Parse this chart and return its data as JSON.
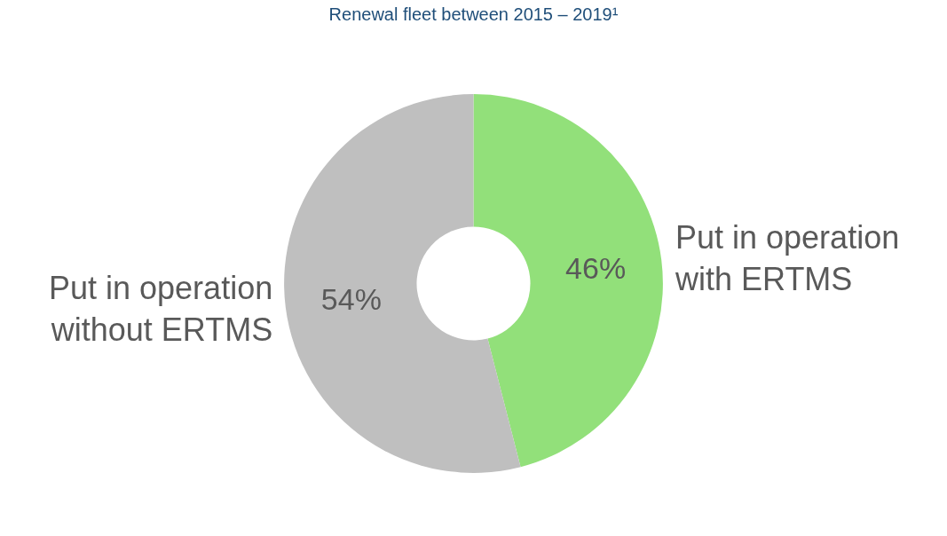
{
  "chart_data": {
    "type": "donut",
    "title": "Renewal fleet between 2015 – 2019¹",
    "categories": [
      "Put in operation with ERTMS",
      "Put in operation without ERTMS"
    ],
    "values": [
      46,
      54
    ],
    "value_labels": [
      "46%",
      "54%"
    ],
    "colors": [
      "#92e07a",
      "#bfbfbf"
    ],
    "legend": false
  }
}
